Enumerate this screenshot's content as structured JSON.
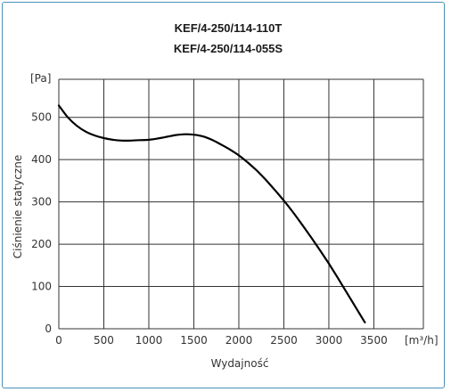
{
  "chart_data": {
    "type": "line",
    "title_lines": [
      "KEF/4-250/114-110T",
      "KEF/4-250/114-055S"
    ],
    "xlabel": "Wydajność",
    "ylabel": "Ciśnienie statyczne",
    "x_unit": "[m³/h]",
    "y_unit": "[Pa]",
    "xlim": [
      0,
      4050
    ],
    "ylim": [
      0,
      590
    ],
    "xticks": [
      0,
      500,
      1000,
      1500,
      2000,
      2500,
      3000,
      3500
    ],
    "yticks": [
      0,
      100,
      200,
      300,
      400,
      500
    ],
    "grid": true,
    "series": [
      {
        "color": "#000000",
        "x": [
          0,
          100,
          200,
          300,
          400,
          500,
          600,
          700,
          800,
          900,
          1000,
          1100,
          1200,
          1300,
          1400,
          1500,
          1600,
          1700,
          1800,
          1900,
          2000,
          2100,
          2200,
          2300,
          2400,
          2500,
          2600,
          2700,
          2800,
          2900,
          3000,
          3100,
          3200,
          3300,
          3400
        ],
        "y": [
          528,
          500,
          480,
          466,
          457,
          451,
          447,
          445,
          445,
          446,
          447,
          450,
          454,
          458,
          460,
          459,
          455,
          447,
          436,
          424,
          410,
          393,
          374,
          352,
          328,
          303,
          276,
          247,
          217,
          186,
          154,
          120,
          85,
          50,
          15
        ]
      }
    ]
  }
}
